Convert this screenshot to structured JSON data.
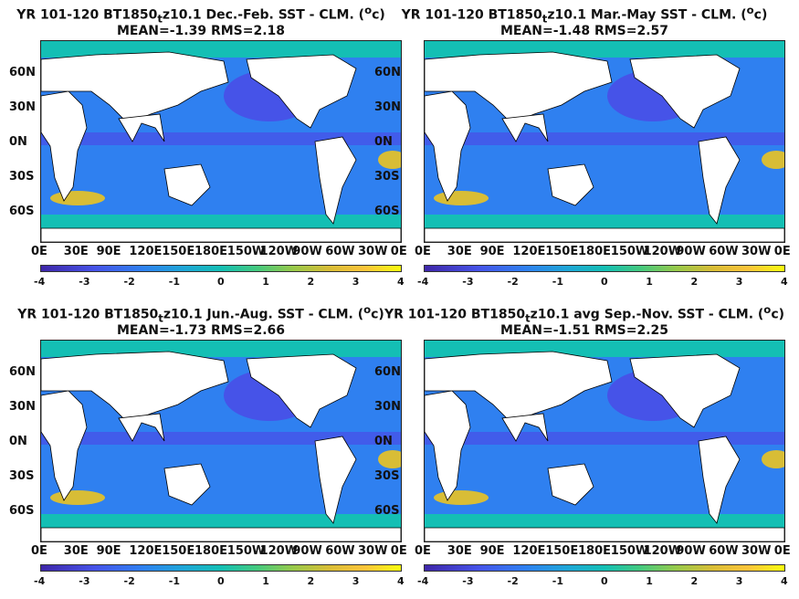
{
  "panels": [
    {
      "title": "YR 101-120 BT1850",
      "sub": "t",
      "title_rest": "z10.1  Dec.-Feb. SST - CLM. (",
      "sup": "o",
      "title_end": "c)",
      "stats": "MEAN=-1.39   RMS=2.18"
    },
    {
      "title": "YR 101-120 BT1850",
      "sub": "t",
      "title_rest": "z10.1 Mar.-May SST - CLM. (",
      "sup": "o",
      "title_end": "c)",
      "stats": "MEAN=-1.48   RMS=2.57"
    },
    {
      "title": "YR 101-120 BT1850",
      "sub": "t",
      "title_rest": "z10.1 Jun.-Aug. SST - CLM. (",
      "sup": "o",
      "title_end": "c)",
      "stats": "MEAN=-1.73   RMS=2.66"
    },
    {
      "title": "YR 101-120 BT1850",
      "sub": "t",
      "title_rest": "z10.1 avg Sep.-Nov. SST - CLM. (",
      "sup": "o",
      "title_end": "c)",
      "stats": "MEAN=-1.51   RMS=2.25"
    }
  ],
  "lat_labels": [
    "60N",
    "30N",
    "0N",
    "30S",
    "60S"
  ],
  "lon_labels": [
    "0E",
    "30E",
    "90E",
    "120E",
    "150E",
    "180E",
    "150W",
    "120W",
    "90W",
    "60W",
    "30W",
    "0E"
  ],
  "colorbar": {
    "ticks": [
      "-4",
      "-3",
      "-2",
      "-1",
      "0",
      "1",
      "2",
      "3",
      "4"
    ],
    "range": [
      -4,
      4
    ]
  },
  "colors": {
    "ocean": "#2f80f0",
    "polar": "#14bfb4",
    "cold": "#4653e8",
    "warm": "#d8bd36",
    "land": "#ffffff"
  }
}
